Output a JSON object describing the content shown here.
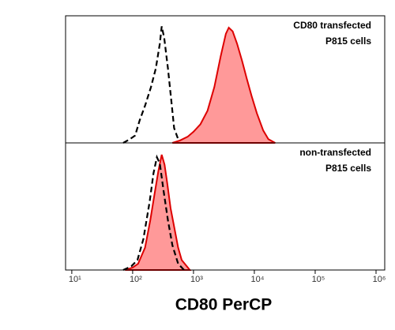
{
  "chart_data": [
    {
      "type": "area",
      "annotation": [
        "CD80 transfected",
        "P815 cells"
      ],
      "xscale": "log",
      "xlim": [
        7.9,
        1390000
      ],
      "ylim": [
        0,
        100
      ],
      "series": [
        {
          "style": "dashed",
          "color": "#000000",
          "x": [
            70,
            90,
            110,
            130,
            160,
            200,
            240,
            280,
            300,
            330,
            380,
            430,
            480,
            560,
            650
          ],
          "values": [
            0,
            3,
            6,
            18,
            30,
            45,
            60,
            80,
            94,
            85,
            60,
            35,
            12,
            3,
            0
          ]
        },
        {
          "style": "filled",
          "color": "#dd0000",
          "fill": "#ff9999",
          "x": [
            450,
            600,
            800,
            1000,
            1300,
            1700,
            2200,
            2800,
            3400,
            3800,
            4400,
            5200,
            6300,
            7500,
            9000,
            11000,
            14000,
            17000,
            22000
          ],
          "values": [
            0,
            2,
            5,
            9,
            15,
            26,
            45,
            70,
            88,
            93,
            90,
            80,
            66,
            52,
            38,
            24,
            10,
            3,
            0
          ]
        }
      ]
    },
    {
      "type": "area",
      "annotation": [
        "non-transfected",
        "P815 cells"
      ],
      "xscale": "log",
      "xlim": [
        7.9,
        1390000
      ],
      "ylim": [
        0,
        100
      ],
      "xlabel": "CD80 PerCP",
      "xticks": [
        {
          "value": 10,
          "label": "10¹"
        },
        {
          "value": 100,
          "label": "10²"
        },
        {
          "value": 1000,
          "label": "10³"
        },
        {
          "value": 10000,
          "label": "10⁴"
        },
        {
          "value": 100000,
          "label": "10⁵"
        },
        {
          "value": 1000000,
          "label": "10⁶"
        }
      ],
      "series": [
        {
          "style": "filled",
          "color": "#dd0000",
          "fill": "#ff9999",
          "x": [
            75,
            100,
            123,
            160,
            195,
            230,
            265,
            300,
            335,
            370,
            420,
            480,
            560,
            640,
            870
          ],
          "values": [
            0,
            2,
            5,
            18,
            40,
            62,
            80,
            93,
            85,
            70,
            50,
            35,
            18,
            8,
            0
          ]
        },
        {
          "style": "dashed",
          "color": "#000000",
          "x": [
            70,
            95,
            120,
            150,
            190,
            220,
            250,
            280,
            320,
            380,
            450,
            560,
            700
          ],
          "values": [
            0,
            3,
            8,
            25,
            55,
            78,
            91,
            86,
            65,
            40,
            20,
            5,
            0
          ]
        }
      ]
    }
  ]
}
